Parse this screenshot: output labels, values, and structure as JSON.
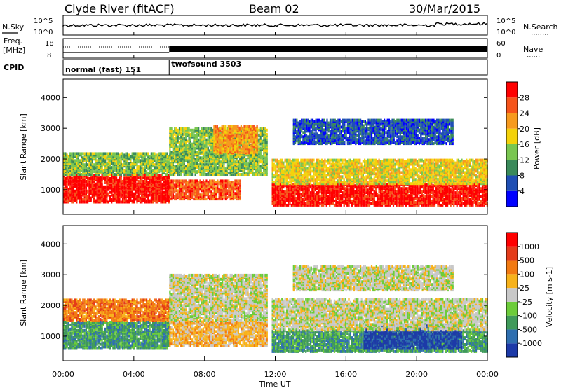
{
  "header": {
    "station": "Clyde River (fitACF)",
    "beam": "Beam 02",
    "date": "30/Mar/2015"
  },
  "top_panels": {
    "nsky_label": "N.Sky",
    "nsky_ticks": [
      "10^5",
      "10^0"
    ],
    "nsearch_label": "N.Search",
    "nsearch_ticks": [
      "10^5",
      "10^0"
    ],
    "freq_label": "Freq.",
    "freq_unit": "[MHz]",
    "freq_ticks": [
      "18",
      "8"
    ],
    "nave_label": "Nave",
    "nave_ticks": [
      "60",
      "0"
    ],
    "cpid_label": "CPID",
    "cpid_segments": [
      {
        "label": "normal (fast) 151",
        "start_hour": 0,
        "end_hour": 6
      },
      {
        "label": "twofsound 3503",
        "start_hour": 6,
        "end_hour": 24
      }
    ]
  },
  "chart_data": [
    {
      "type": "heatmap",
      "name": "power",
      "ylabel": "Slant Range [km]",
      "xlabel": "",
      "xlim": [
        0,
        24
      ],
      "ylim": [
        200,
        4600
      ],
      "yticks": [
        "1000",
        "2000",
        "3000",
        "4000"
      ],
      "colorbar": {
        "label": "Power [dB]",
        "ticks": [
          "4",
          "8",
          "12",
          "16",
          "20",
          "24",
          "28"
        ],
        "colors": [
          "#0000ff",
          "#1f4fb4",
          "#3a8a5a",
          "#79c650",
          "#f4d20a",
          "#f79a1e",
          "#f6541a",
          "#ff0000"
        ]
      },
      "bands": [
        {
          "t0": 0.0,
          "t1": 6.0,
          "r0": 600,
          "r1": 1500,
          "level": 7
        },
        {
          "t0": 0.0,
          "t1": 6.0,
          "r0": 1500,
          "r1": 2200,
          "level": 3
        },
        {
          "t0": 6.0,
          "t1": 10.0,
          "r0": 700,
          "r1": 1300,
          "level": 6
        },
        {
          "t0": 6.0,
          "t1": 11.5,
          "r0": 1500,
          "r1": 3000,
          "level": 3
        },
        {
          "t0": 8.5,
          "t1": 11.0,
          "r0": 2200,
          "r1": 3100,
          "level": 5
        },
        {
          "t0": 11.8,
          "t1": 24.0,
          "r0": 500,
          "r1": 1200,
          "level": 7
        },
        {
          "t0": 11.8,
          "t1": 24.0,
          "r0": 1200,
          "r1": 2000,
          "level": 4
        },
        {
          "t0": 13.0,
          "t1": 22.0,
          "r0": 2500,
          "r1": 3300,
          "level": 1
        }
      ]
    },
    {
      "type": "heatmap",
      "name": "velocity",
      "ylabel": "Slant Range [km]",
      "xlabel": "Time UT",
      "xlim": [
        0,
        24
      ],
      "ylim": [
        200,
        4600
      ],
      "yticks": [
        "1000",
        "2000",
        "3000",
        "4000"
      ],
      "xticks": [
        "00:00",
        "04:00",
        "08:00",
        "12:00",
        "16:00",
        "20:00",
        "00:00"
      ],
      "colorbar": {
        "label": "Velocity [m s-1]",
        "ticks": [
          "1000",
          "500",
          "100",
          "25",
          "-25",
          "-100",
          "-500",
          "-1000"
        ],
        "colors": [
          "#1d3aa8",
          "#2f6fb0",
          "#3f9a5a",
          "#6ccc3a",
          "#c8c8c8",
          "#f7b21a",
          "#f27a12",
          "#e43c1a",
          "#ff0000"
        ]
      },
      "bands": [
        {
          "t0": 0.0,
          "t1": 6.0,
          "r0": 600,
          "r1": 1500,
          "level": 2
        },
        {
          "t0": 0.0,
          "t1": 6.0,
          "r0": 1500,
          "r1": 2200,
          "level": 6
        },
        {
          "t0": 6.0,
          "t1": 11.5,
          "r0": 700,
          "r1": 1500,
          "level": 5
        },
        {
          "t0": 6.0,
          "t1": 11.5,
          "r0": 1500,
          "r1": 3000,
          "level": 4
        },
        {
          "t0": 11.8,
          "t1": 24.0,
          "r0": 500,
          "r1": 1200,
          "level": 2
        },
        {
          "t0": 17.0,
          "t1": 22.5,
          "r0": 600,
          "r1": 1400,
          "level": 0
        },
        {
          "t0": 11.8,
          "t1": 24.0,
          "r0": 1200,
          "r1": 2200,
          "level": 4
        },
        {
          "t0": 13.0,
          "t1": 22.0,
          "r0": 2500,
          "r1": 3300,
          "level": 4
        }
      ]
    }
  ]
}
